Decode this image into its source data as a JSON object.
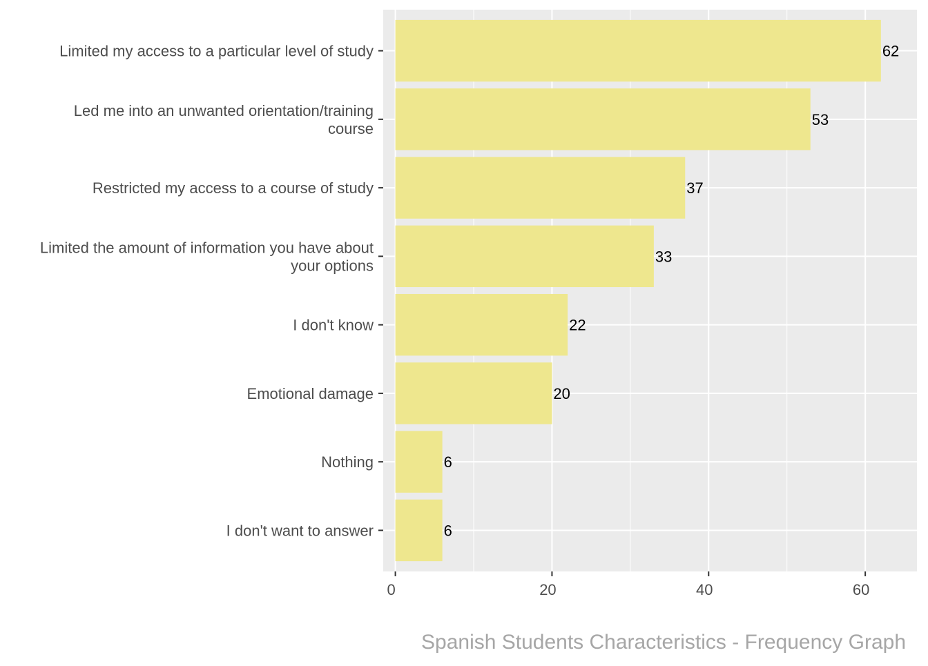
{
  "chart_data": {
    "type": "bar",
    "orientation": "horizontal",
    "title": "",
    "caption": "Spanish Students Characteristics - Frequency Graph",
    "xlabel": "",
    "ylabel": "",
    "categories": [
      [
        "Limited my access to a particular level of study"
      ],
      [
        "Led me into an unwanted orientation/training",
        "course"
      ],
      [
        "Restricted my access to a course of study"
      ],
      [
        "Limited the amount of information you have about",
        "your options"
      ],
      [
        "I don't know"
      ],
      [
        "Emotional damage"
      ],
      [
        "Nothing"
      ],
      [
        "I don't want to answer"
      ]
    ],
    "values": [
      62,
      53,
      37,
      33,
      22,
      20,
      6,
      6
    ],
    "data_labels": [
      "62",
      "53",
      "37",
      "33",
      "22",
      "20",
      "6",
      "6"
    ],
    "xlim": [
      -1.55,
      66.6
    ],
    "xticks": [
      0,
      20,
      40,
      60
    ],
    "xtick_labels": [
      "0",
      "20",
      "40",
      "60"
    ],
    "minor_xticks": [
      10,
      30,
      50
    ],
    "grid": true,
    "legend": "none",
    "colors": {
      "bar": "#EEE78E",
      "panel_bg": "#EBEBEB",
      "grid": "#FFFFFF",
      "axis_text": "#4D4D4D",
      "label_text": "#000000",
      "caption": "#A6A6A6"
    }
  }
}
